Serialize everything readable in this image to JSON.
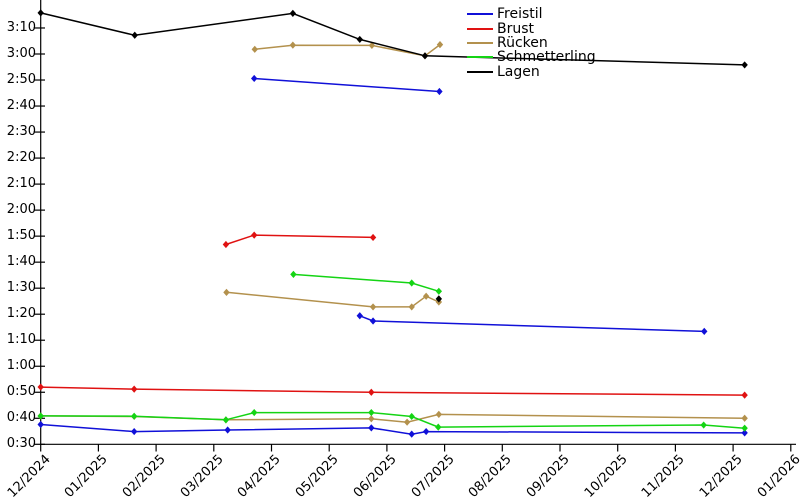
{
  "chart_data": {
    "type": "line",
    "title": "",
    "xlabel": "",
    "ylabel": "",
    "grid": false,
    "legend_position": "top-right",
    "axis_color": "#000000",
    "x_axis": {
      "tick_labels": [
        "12/2024",
        "01/2025",
        "02/2025",
        "03/2025",
        "04/2025",
        "05/2025",
        "06/2025",
        "07/2025",
        "08/2025",
        "09/2025",
        "10/2025",
        "11/2025",
        "12/2025",
        "01/2026"
      ]
    },
    "y_axis": {
      "tick_labels": [
        "0:30",
        "0:40",
        "0:50",
        "1:00",
        "1:10",
        "1:20",
        "1:30",
        "1:40",
        "1:50",
        "2:00",
        "2:10",
        "2:20",
        "2:30",
        "2:40",
        "2:50",
        "3:00",
        "3:10"
      ],
      "tick_seconds": [
        30,
        40,
        50,
        60,
        70,
        80,
        90,
        100,
        110,
        120,
        130,
        140,
        150,
        160,
        170,
        180,
        190
      ],
      "unit": "min:sec"
    },
    "series": [
      {
        "name": "Freistil",
        "color": "#1010d8",
        "segments": [
          {
            "points": [
              [
                3.7,
                170.6
              ],
              [
                6.91,
                165.6
              ]
            ]
          },
          {
            "points": [
              [
                5.53,
                79.4
              ],
              [
                5.76,
                77.4
              ],
              [
                11.5,
                73.4
              ]
            ]
          },
          {
            "points": [
              [
                0,
                37.6
              ],
              [
                1.62,
                34.9
              ],
              [
                3.24,
                35.5
              ],
              [
                5.73,
                36.3
              ],
              [
                6.43,
                33.9
              ],
              [
                6.68,
                34.9
              ],
              [
                12.2,
                34.4
              ]
            ]
          }
        ]
      },
      {
        "name": "Brust",
        "color": "#e01212",
        "segments": [
          {
            "points": [
              [
                3.21,
                106.8
              ],
              [
                3.7,
                110.4
              ],
              [
                5.76,
                109.5
              ]
            ]
          },
          {
            "points": [
              [
                0,
                52.0
              ],
              [
                1.62,
                51.2
              ],
              [
                5.73,
                50.0
              ],
              [
                12.2,
                48.9
              ]
            ]
          }
        ]
      },
      {
        "name": "Rücken",
        "color": "#b3914d",
        "segments": [
          {
            "points": [
              [
                3.71,
                181.8
              ],
              [
                4.37,
                183.4
              ],
              [
                5.74,
                183.3
              ],
              [
                6.66,
                179.3
              ],
              [
                6.92,
                183.6
              ]
            ]
          },
          {
            "points": [
              [
                3.22,
                88.4
              ],
              [
                5.76,
                82.8
              ],
              [
                6.43,
                82.8
              ],
              [
                6.68,
                86.9
              ],
              [
                6.9,
                84.7
              ]
            ]
          },
          {
            "points": [
              [
                0,
                40.9
              ],
              [
                1.62,
                40.7
              ],
              [
                3.21,
                39.4
              ],
              [
                5.73,
                39.8
              ],
              [
                6.35,
                38.5
              ],
              [
                6.9,
                41.5
              ],
              [
                12.2,
                40.0
              ]
            ]
          }
        ]
      },
      {
        "name": "Schmetterling",
        "color": "#14d414",
        "segments": [
          {
            "points": [
              [
                4.38,
                95.3
              ],
              [
                6.43,
                92.0
              ],
              [
                6.9,
                88.8
              ]
            ]
          },
          {
            "points": [
              [
                0,
                40.9
              ],
              [
                1.62,
                40.8
              ],
              [
                3.21,
                39.4
              ],
              [
                3.7,
                42.2
              ],
              [
                5.73,
                42.2
              ],
              [
                6.43,
                40.7
              ],
              [
                6.89,
                36.6
              ],
              [
                11.49,
                37.4
              ],
              [
                12.2,
                36.2
              ]
            ]
          }
        ]
      },
      {
        "name": "Lagen",
        "color": "#000000",
        "segments": [
          {
            "points": [
              [
                0,
                195.8
              ],
              [
                1.63,
                187.2
              ],
              [
                4.37,
                195.6
              ],
              [
                5.53,
                185.6
              ],
              [
                6.66,
                179.3
              ],
              [
                12.2,
                175.8
              ]
            ]
          },
          {
            "points": [
              [
                6.9,
                85.9
              ]
            ]
          }
        ]
      }
    ],
    "x_encoding": "months after 12/2024 tick",
    "y_encoding": "time in seconds"
  }
}
